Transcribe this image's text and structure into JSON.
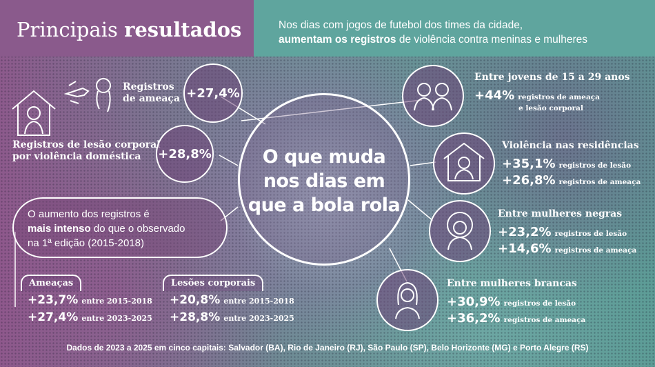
{
  "header": {
    "title_light": "Principais",
    "title_bold": "resultados",
    "headline_line1": "Nos dias com jogos de futebol dos times da cidade,",
    "headline_bold": "aumentam os registros",
    "headline_rest": " de violência contra meninas e mulheres"
  },
  "center": {
    "line1": "O que muda",
    "line2": "nos dias em",
    "line3": "que a bola rola"
  },
  "left_stats": {
    "threat": {
      "label_line1": "Registros",
      "label_line2": "de ameaça",
      "value": "+27,4%"
    },
    "domestic": {
      "label_line1": "Registros de lesão corporal",
      "label_line2": "por violência doméstica",
      "value": "+28,8%"
    }
  },
  "right_stats": {
    "youth": {
      "title": "Entre jovens de 15 a 29 anos",
      "value": "+44%",
      "desc_line1": "registros de ameaça",
      "desc_line2": "e lesão corporal"
    },
    "homes": {
      "title": "Violência nas residências",
      "value1": "+35,1%",
      "desc1": "registros de lesão",
      "value2": "+26,8%",
      "desc2": "registros de ameaça"
    },
    "black_women": {
      "title": "Entre mulheres negras",
      "value1": "+23,2%",
      "desc1": "registros de lesão",
      "value2": "+14,6%",
      "desc2": "registros de ameaça"
    },
    "white_women": {
      "title": "Entre mulheres brancas",
      "value1": "+30,9%",
      "desc1": "registros de lesão",
      "value2": "+36,2%",
      "desc2": "registros de ameaça"
    }
  },
  "comparison": {
    "line1": "O aumento dos registros é",
    "line2_bold": "mais intenso",
    "line2_rest": " do que o observado",
    "line3": "na 1ª edição (2015-2018)",
    "threats": {
      "label": "Ameaças",
      "value1": "+23,7%",
      "period1": "entre 2015-2018",
      "value2": "+27,4%",
      "period2": "entre 2023-2025"
    },
    "injuries": {
      "label": "Lesões corporais",
      "value1": "+20,8%",
      "period1": "entre 2015-2018",
      "value2": "+28,8%",
      "period2": "entre 2023-2025"
    }
  },
  "footer": {
    "source": "Dados de 2023 a 2025 em cinco capitais: Salvador (BA), Rio de Janeiro (RJ), São Paulo (SP), Belo Horizonte (MG) e Porto Alegre (RS)"
  },
  "colors": {
    "purple": "#8a5a8c",
    "teal": "#5fa59e",
    "white": "#ffffff"
  }
}
